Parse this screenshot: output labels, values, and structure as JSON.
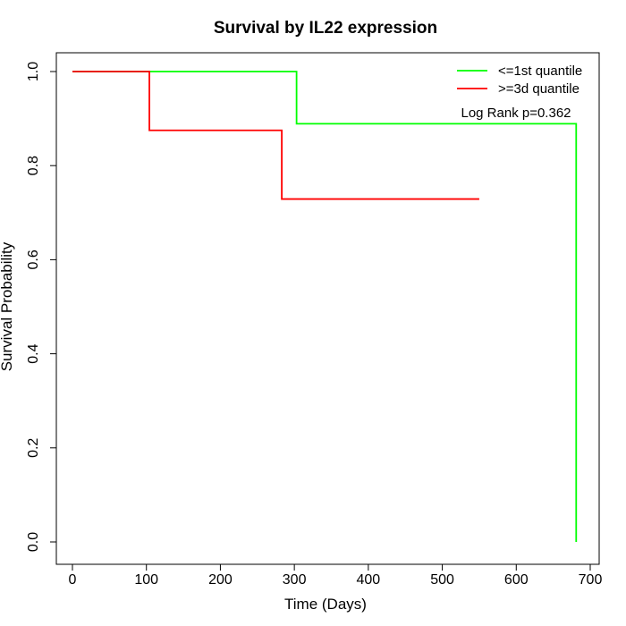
{
  "chart_data": {
    "type": "line",
    "title": "Survival by IL22 expression",
    "xlabel": "Time (Days)",
    "ylabel": "Survival Probability",
    "xlim": [
      0,
      700
    ],
    "ylim": [
      0,
      1
    ],
    "x_ticks": [
      0,
      100,
      200,
      300,
      400,
      500,
      600,
      700
    ],
    "y_ticks": [
      "0.0",
      "0.2",
      "0.4",
      "0.6",
      "0.8",
      "1.0"
    ],
    "grid": false,
    "legend_position": "top-right",
    "series": [
      {
        "name": "<=1st quantile",
        "color": "#00ff00",
        "steps": [
          {
            "x": 0,
            "y": 1.0
          },
          {
            "x": 303,
            "y": 0.889
          },
          {
            "x": 681,
            "y": 0.0
          }
        ],
        "end_x": 681
      },
      {
        "name": ">=3d quantile",
        "color": "#ff0000",
        "steps": [
          {
            "x": 0,
            "y": 1.0
          },
          {
            "x": 104,
            "y": 0.875
          },
          {
            "x": 283,
            "y": 0.729
          }
        ],
        "end_x": 550
      }
    ],
    "annotation": "Log Rank p=0.362"
  }
}
